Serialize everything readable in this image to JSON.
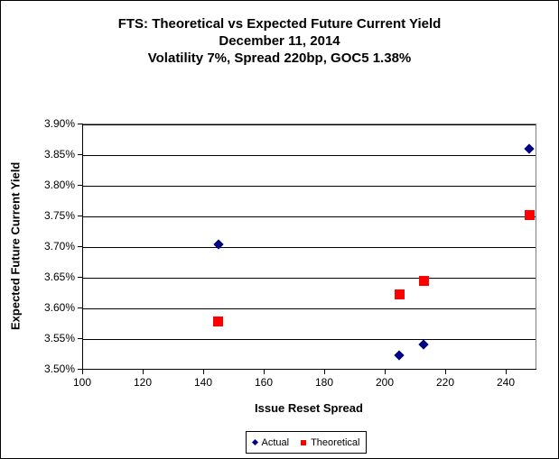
{
  "figure": {
    "title_lines": [
      "FTS: Theoretical vs Expected Future Current Yield",
      "December 11, 2014",
      "Volatility 7%, Spread 220bp, GOC5 1.38%"
    ]
  },
  "chart_data": {
    "type": "scatter",
    "title": "FTS: Theoretical vs Expected Future Current Yield",
    "subtitle_lines": [
      "December 11, 2014",
      "Volatility 7%, Spread 220bp, GOC5 1.38%"
    ],
    "xlabel": "Issue Reset Spread",
    "ylabel": "Expected Future Current Yield",
    "xlim": [
      100,
      250
    ],
    "ylim": [
      3.5,
      3.9
    ],
    "x_ticks": [
      100,
      120,
      140,
      160,
      180,
      200,
      220,
      240
    ],
    "y_ticks": [
      3.5,
      3.55,
      3.6,
      3.65,
      3.7,
      3.75,
      3.8,
      3.85,
      3.9
    ],
    "y_tick_suffix": "%",
    "grid": true,
    "legend_position": "bottom-center",
    "series": [
      {
        "name": "Actual",
        "marker": "diamond",
        "color": "#000080",
        "points": [
          [
            145,
            3.705
          ],
          [
            205,
            3.523
          ],
          [
            213,
            3.541
          ],
          [
            248,
            3.86
          ]
        ]
      },
      {
        "name": "Theoretical",
        "marker": "square",
        "color": "#FF0000",
        "points": [
          [
            145,
            3.579
          ],
          [
            205,
            3.623
          ],
          [
            213,
            3.645
          ],
          [
            248,
            3.752
          ]
        ]
      }
    ]
  },
  "colors": {
    "actual": "#000080",
    "theoretical": "#FF0000",
    "gridline": "#000000",
    "plot_border": "#808080",
    "figure_border": "#000000"
  }
}
